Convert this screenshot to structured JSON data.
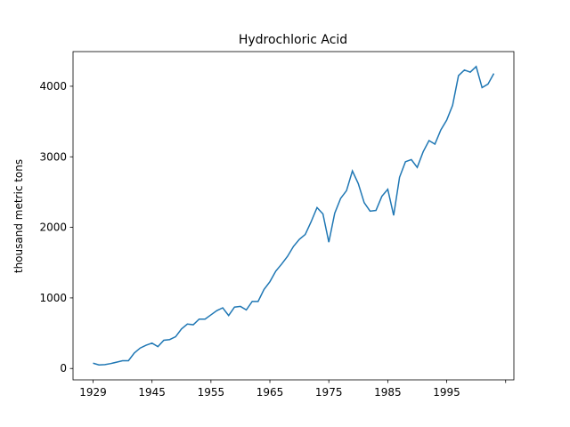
{
  "chart_data": {
    "type": "line",
    "title": "Hydrochloric Acid",
    "ylabel": "thousand metric tons",
    "x": [
      0,
      1,
      2,
      3,
      4,
      5,
      6,
      7,
      8,
      9,
      10,
      11,
      12,
      13,
      14,
      15,
      16,
      17,
      18,
      19,
      20,
      21,
      22,
      23,
      24,
      25,
      26,
      27,
      28,
      29,
      30,
      31,
      32,
      33,
      34,
      35,
      36,
      37,
      38,
      39,
      40,
      41,
      42,
      43,
      44,
      45,
      46,
      47,
      48,
      49,
      50,
      51,
      52,
      53,
      54,
      55,
      56,
      57,
      58,
      59,
      60,
      61,
      62,
      63,
      64,
      65,
      66,
      67,
      68
    ],
    "series": [
      {
        "name": "Hydrochloric Acid",
        "color": "#1f77b4",
        "values": [
          75,
          50,
          55,
          70,
          90,
          110,
          110,
          220,
          290,
          330,
          360,
          310,
          400,
          410,
          450,
          560,
          630,
          620,
          700,
          700,
          760,
          820,
          860,
          750,
          870,
          880,
          830,
          950,
          950,
          1120,
          1230,
          1380,
          1480,
          1590,
          1730,
          1830,
          1900,
          2080,
          2280,
          2190,
          1790,
          2200,
          2410,
          2520,
          2800,
          2620,
          2350,
          2230,
          2240,
          2440,
          2540,
          2170,
          2710,
          2930,
          2960,
          2850,
          3070,
          3230,
          3180,
          3380,
          3520,
          3730,
          4150,
          4230,
          4200,
          4280,
          3980,
          4030,
          4180
        ]
      }
    ],
    "xlim": [
      -3.4,
      71.4
    ],
    "xticks": [
      {
        "value": 0,
        "label": "1929"
      },
      {
        "value": 10,
        "label": "1945"
      },
      {
        "value": 20,
        "label": "1955"
      },
      {
        "value": 30,
        "label": "1965"
      },
      {
        "value": 40,
        "label": "1975"
      },
      {
        "value": 50,
        "label": "1985"
      },
      {
        "value": 60,
        "label": "1995"
      },
      {
        "value": 70,
        "label": null
      }
    ],
    "ylim": [
      -161,
      4491
    ],
    "yticks": [
      0,
      1000,
      2000,
      3000,
      4000
    ]
  }
}
